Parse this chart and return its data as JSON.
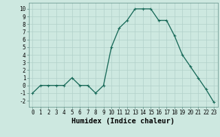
{
  "x": [
    0,
    1,
    2,
    3,
    4,
    5,
    6,
    7,
    8,
    9,
    10,
    11,
    12,
    13,
    14,
    15,
    16,
    17,
    18,
    19,
    20,
    21,
    22,
    23
  ],
  "y": [
    -1,
    0,
    0,
    0,
    0,
    1,
    0,
    0,
    -1,
    0,
    5,
    7.5,
    8.5,
    10,
    10,
    10,
    8.5,
    8.5,
    6.5,
    4,
    2.5,
    1,
    -0.5,
    -2.2
  ],
  "line_color": "#1a6b5a",
  "marker": "+",
  "marker_size": 3,
  "bg_color": "#cde8e0",
  "grid_color": "#b0cfc8",
  "xlabel": "Humidex (Indice chaleur)",
  "xlim": [
    -0.5,
    23.5
  ],
  "ylim": [
    -2.8,
    10.8
  ],
  "yticks": [
    -2,
    -1,
    0,
    1,
    2,
    3,
    4,
    5,
    6,
    7,
    8,
    9,
    10
  ],
  "xticks": [
    0,
    1,
    2,
    3,
    4,
    5,
    6,
    7,
    8,
    9,
    10,
    11,
    12,
    13,
    14,
    15,
    16,
    17,
    18,
    19,
    20,
    21,
    22,
    23
  ],
  "tick_fontsize": 5.5,
  "xlabel_fontsize": 7.5,
  "line_width": 1.0
}
